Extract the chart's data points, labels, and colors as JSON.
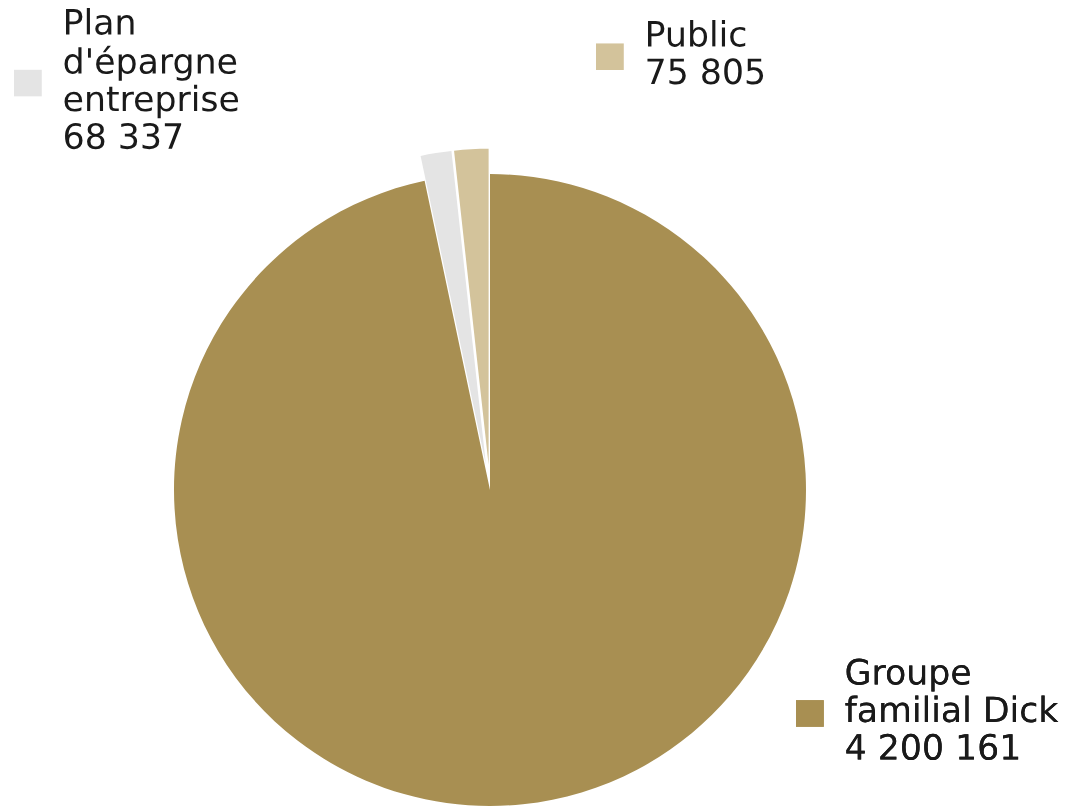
{
  "chart_data": {
    "type": "pie",
    "categories": [
      "Public",
      "Plan\nd'épargne\nentreprise",
      "Groupe\nfamilial Dick"
    ],
    "values": [
      75805,
      68337,
      4200161
    ],
    "colors": [
      "#d3c39b",
      "#e4e4e4",
      "#a88f52"
    ],
    "value_labels": [
      "75 805",
      "68 337",
      "4 200 161"
    ],
    "legend": "top"
  }
}
